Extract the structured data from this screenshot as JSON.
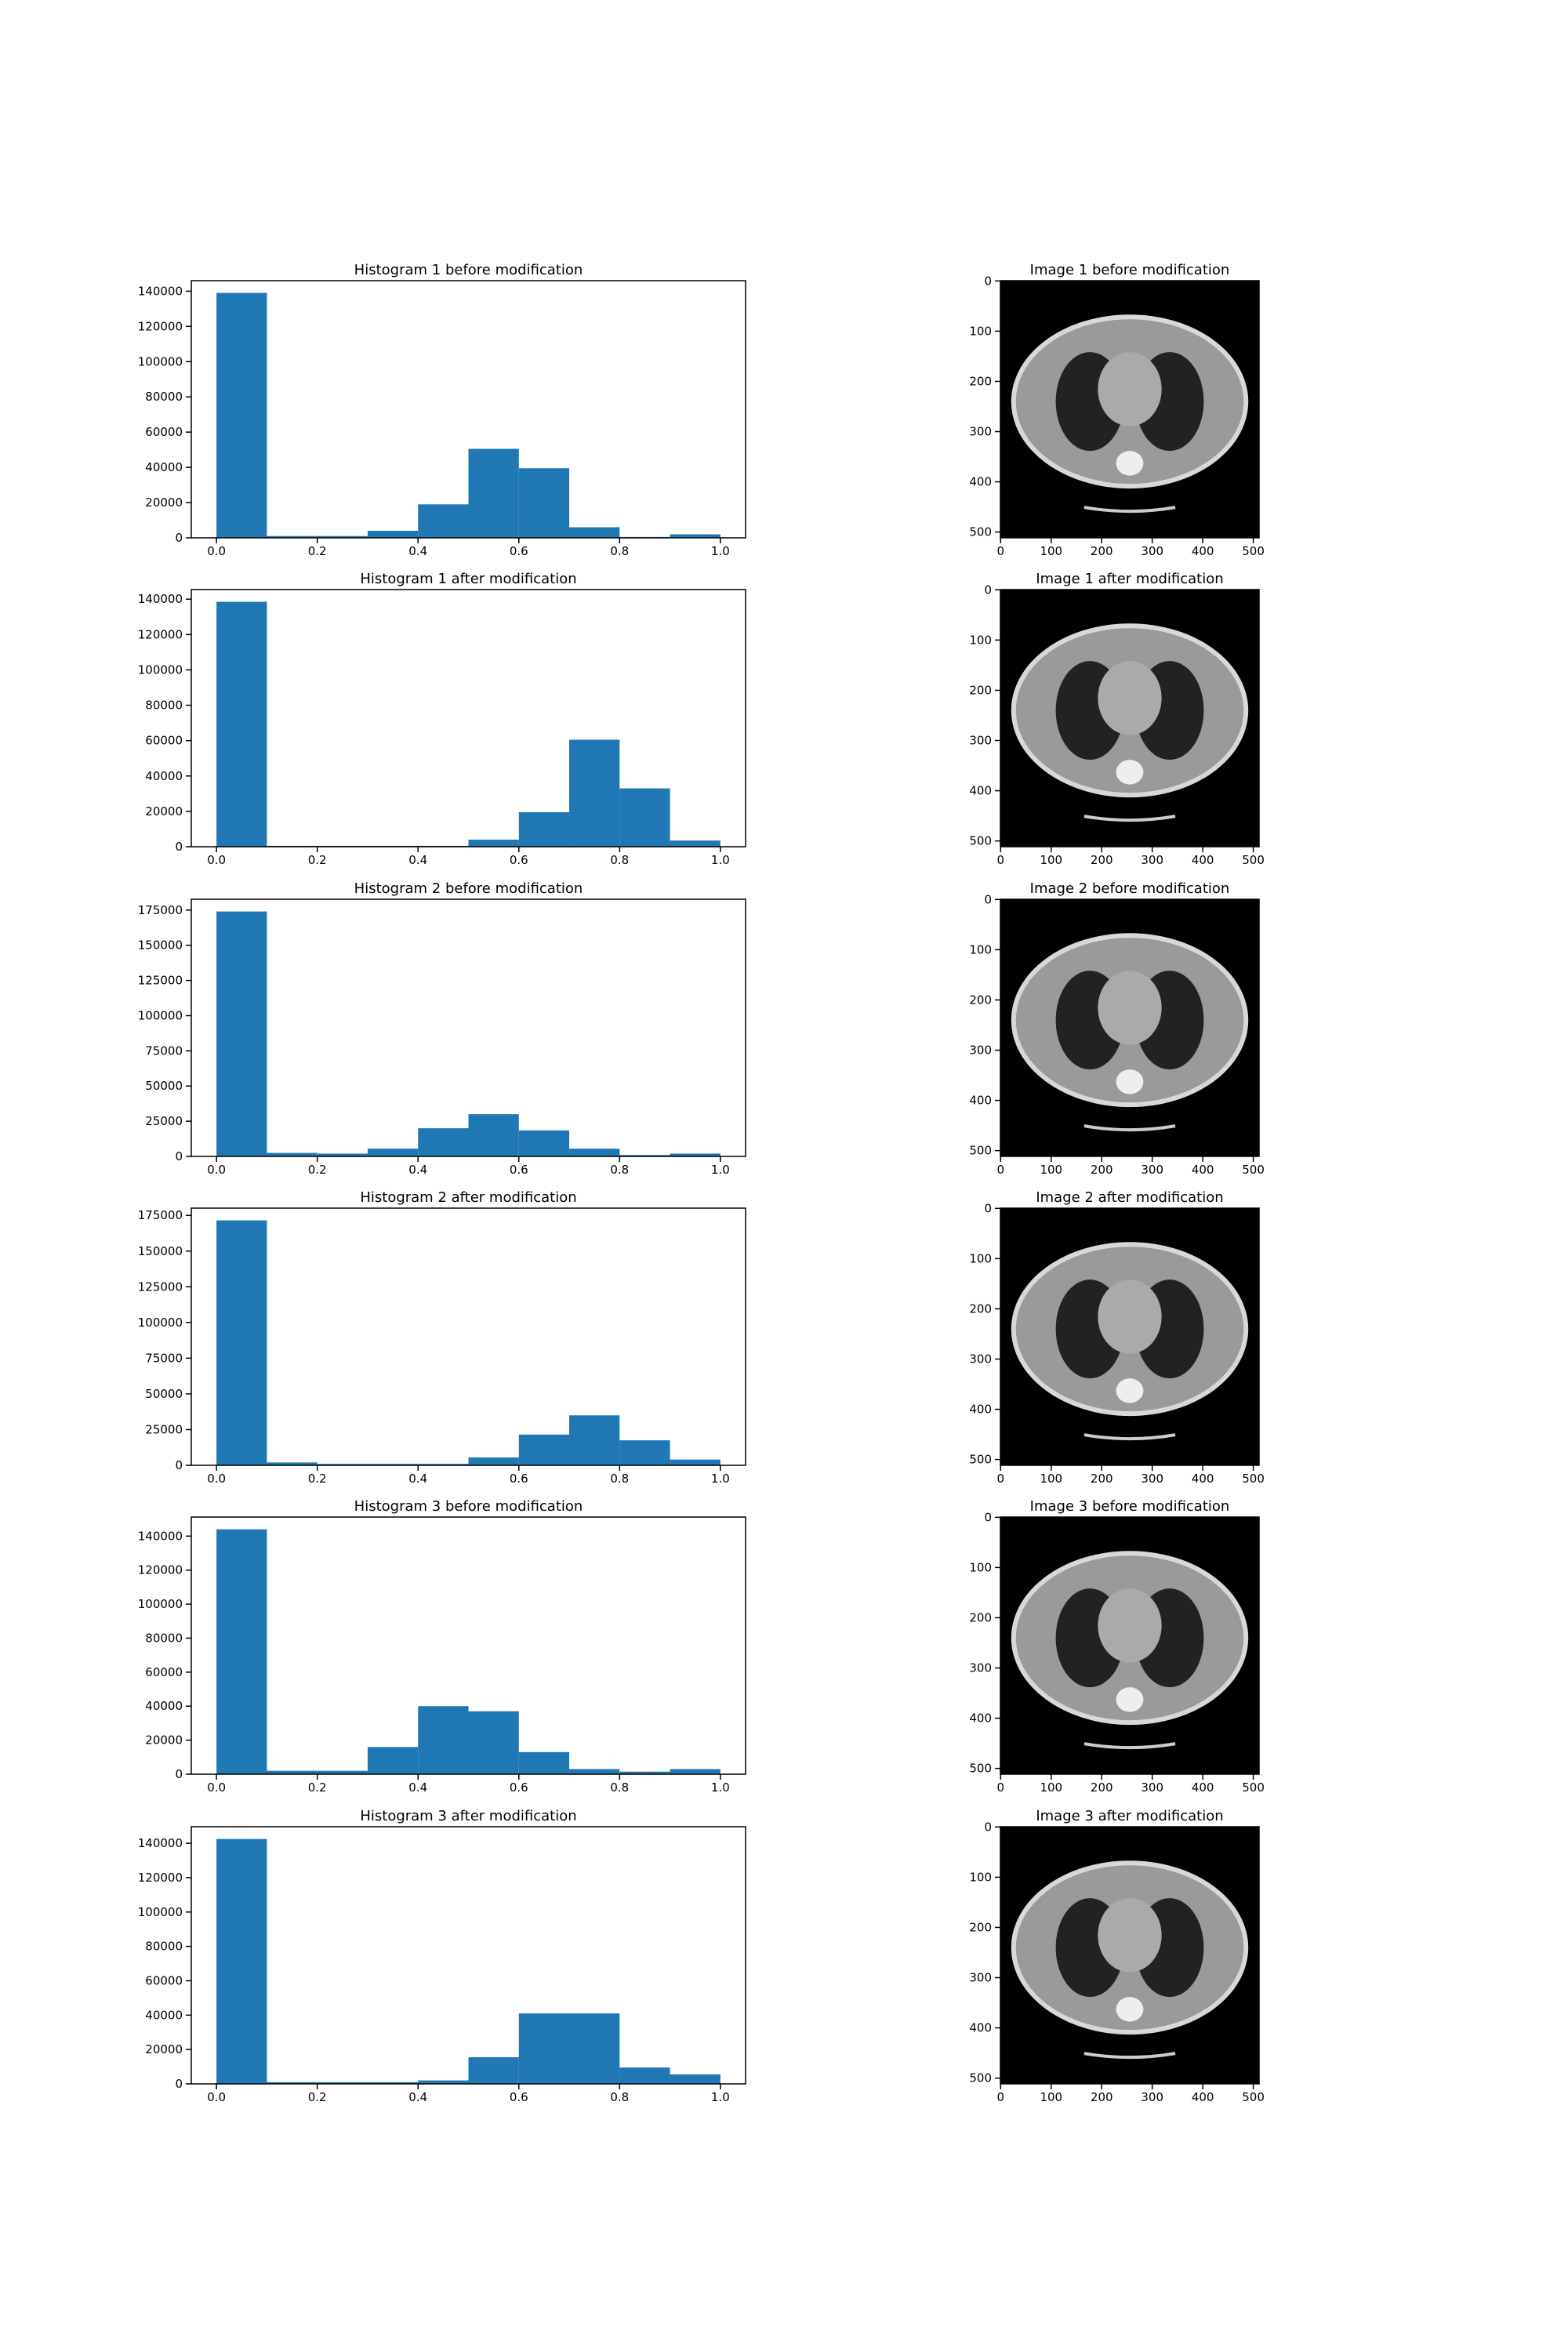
{
  "chart_data": [
    {
      "type": "histogram",
      "title": "Histogram 1 before modification",
      "color": "#1f77b4",
      "bins": [
        0,
        0.1,
        0.2,
        0.3,
        0.4,
        0.5,
        0.6,
        0.7,
        0.8,
        0.9,
        1.0
      ],
      "values": [
        139000,
        1000,
        1000,
        4000,
        19000,
        50500,
        39500,
        6000,
        500,
        2000
      ],
      "xlim": [
        -0.05,
        1.05
      ],
      "ylim": [
        0,
        145950
      ],
      "xticks": [
        {
          "value": 0,
          "label": "0.0"
        },
        0.2,
        0.4,
        0.6,
        0.8,
        {
          "value": 1,
          "label": "1.0"
        }
      ],
      "yticks": [
        0,
        20000,
        40000,
        60000,
        80000,
        100000,
        120000,
        140000
      ]
    },
    {
      "type": "image",
      "title": "Image 1 before modification",
      "xlim": [
        -0.5,
        511.5
      ],
      "ylim": [
        511.5,
        -0.5
      ],
      "xticks": [
        0,
        100,
        200,
        300,
        400,
        500
      ],
      "yticks": [
        0,
        100,
        200,
        300,
        400,
        500
      ]
    },
    {
      "type": "histogram",
      "title": "Histogram 1 after modification",
      "color": "#1f77b4",
      "bins": [
        0,
        0.1,
        0.2,
        0.3,
        0.4,
        0.5,
        0.6,
        0.7,
        0.8,
        0.9,
        1.0
      ],
      "values": [
        138500,
        500,
        500,
        500,
        500,
        4000,
        19500,
        60500,
        33000,
        3500
      ],
      "xlim": [
        -0.05,
        1.05
      ],
      "ylim": [
        0,
        145425
      ],
      "xticks": [
        {
          "value": 0,
          "label": "0.0"
        },
        0.2,
        0.4,
        0.6,
        0.8,
        {
          "value": 1,
          "label": "1.0"
        }
      ],
      "yticks": [
        0,
        20000,
        40000,
        60000,
        80000,
        100000,
        120000,
        140000
      ]
    },
    {
      "type": "image",
      "title": "Image 1 after modification",
      "xlim": [
        -0.5,
        511.5
      ],
      "ylim": [
        511.5,
        -0.5
      ],
      "xticks": [
        0,
        100,
        200,
        300,
        400,
        500
      ],
      "yticks": [
        0,
        100,
        200,
        300,
        400,
        500
      ]
    },
    {
      "type": "histogram",
      "title": "Histogram 2 before modification",
      "color": "#1f77b4",
      "bins": [
        0,
        0.1,
        0.2,
        0.3,
        0.4,
        0.5,
        0.6,
        0.7,
        0.8,
        0.9,
        1.0
      ],
      "values": [
        174000,
        2500,
        2000,
        5500,
        20000,
        30000,
        18500,
        5500,
        1000,
        2000
      ],
      "xlim": [
        -0.05,
        1.05
      ],
      "ylim": [
        0,
        182700
      ],
      "xticks": [
        {
          "value": 0,
          "label": "0.0"
        },
        0.2,
        0.4,
        0.6,
        0.8,
        {
          "value": 1,
          "label": "1.0"
        }
      ],
      "yticks": [
        0,
        25000,
        50000,
        75000,
        100000,
        125000,
        150000,
        175000
      ]
    },
    {
      "type": "image",
      "title": "Image 2 before modification",
      "xlim": [
        -0.5,
        511.5
      ],
      "ylim": [
        511.5,
        -0.5
      ],
      "xticks": [
        0,
        100,
        200,
        300,
        400,
        500
      ],
      "yticks": [
        0,
        100,
        200,
        300,
        400,
        500
      ]
    },
    {
      "type": "histogram",
      "title": "Histogram 2 after modification",
      "color": "#1f77b4",
      "bins": [
        0,
        0.1,
        0.2,
        0.3,
        0.4,
        0.5,
        0.6,
        0.7,
        0.8,
        0.9,
        1.0
      ],
      "values": [
        171500,
        2000,
        1000,
        1000,
        1000,
        5500,
        21500,
        35000,
        17500,
        4000
      ],
      "xlim": [
        -0.05,
        1.05
      ],
      "ylim": [
        0,
        180075
      ],
      "xticks": [
        {
          "value": 0,
          "label": "0.0"
        },
        0.2,
        0.4,
        0.6,
        0.8,
        {
          "value": 1,
          "label": "1.0"
        }
      ],
      "yticks": [
        0,
        25000,
        50000,
        75000,
        100000,
        125000,
        150000,
        175000
      ]
    },
    {
      "type": "image",
      "title": "Image 2 after modification",
      "xlim": [
        -0.5,
        511.5
      ],
      "ylim": [
        511.5,
        -0.5
      ],
      "xticks": [
        0,
        100,
        200,
        300,
        400,
        500
      ],
      "yticks": [
        0,
        100,
        200,
        300,
        400,
        500
      ]
    },
    {
      "type": "histogram",
      "title": "Histogram 3 before modification",
      "color": "#1f77b4",
      "bins": [
        0,
        0.1,
        0.2,
        0.3,
        0.4,
        0.5,
        0.6,
        0.7,
        0.8,
        0.9,
        1.0
      ],
      "values": [
        144000,
        2000,
        2000,
        16000,
        40000,
        37000,
        13000,
        3000,
        1500,
        3000
      ],
      "xlim": [
        -0.05,
        1.05
      ],
      "ylim": [
        0,
        151200
      ],
      "xticks": [
        {
          "value": 0,
          "label": "0.0"
        },
        0.2,
        0.4,
        0.6,
        0.8,
        {
          "value": 1,
          "label": "1.0"
        }
      ],
      "yticks": [
        0,
        20000,
        40000,
        60000,
        80000,
        100000,
        120000,
        140000
      ]
    },
    {
      "type": "image",
      "title": "Image 3 before modification",
      "xlim": [
        -0.5,
        511.5
      ],
      "ylim": [
        511.5,
        -0.5
      ],
      "xticks": [
        0,
        100,
        200,
        300,
        400,
        500
      ],
      "yticks": [
        0,
        100,
        200,
        300,
        400,
        500
      ]
    },
    {
      "type": "histogram",
      "title": "Histogram 3 after modification",
      "color": "#1f77b4",
      "bins": [
        0,
        0.1,
        0.2,
        0.3,
        0.4,
        0.5,
        0.6,
        0.7,
        0.8,
        0.9,
        1.0
      ],
      "values": [
        142500,
        1000,
        1000,
        1000,
        2000,
        15500,
        41000,
        41000,
        9500,
        5500
      ],
      "xlim": [
        -0.05,
        1.05
      ],
      "ylim": [
        0,
        149625
      ],
      "xticks": [
        {
          "value": 0,
          "label": "0.0"
        },
        0.2,
        0.4,
        0.6,
        0.8,
        {
          "value": 1,
          "label": "1.0"
        }
      ],
      "yticks": [
        0,
        20000,
        40000,
        60000,
        80000,
        100000,
        120000,
        140000
      ]
    },
    {
      "type": "image",
      "title": "Image 3 after modification",
      "xlim": [
        -0.5,
        511.5
      ],
      "ylim": [
        511.5,
        -0.5
      ],
      "xticks": [
        0,
        100,
        200,
        300,
        400,
        500
      ],
      "yticks": [
        0,
        100,
        200,
        300,
        400,
        500
      ]
    }
  ]
}
